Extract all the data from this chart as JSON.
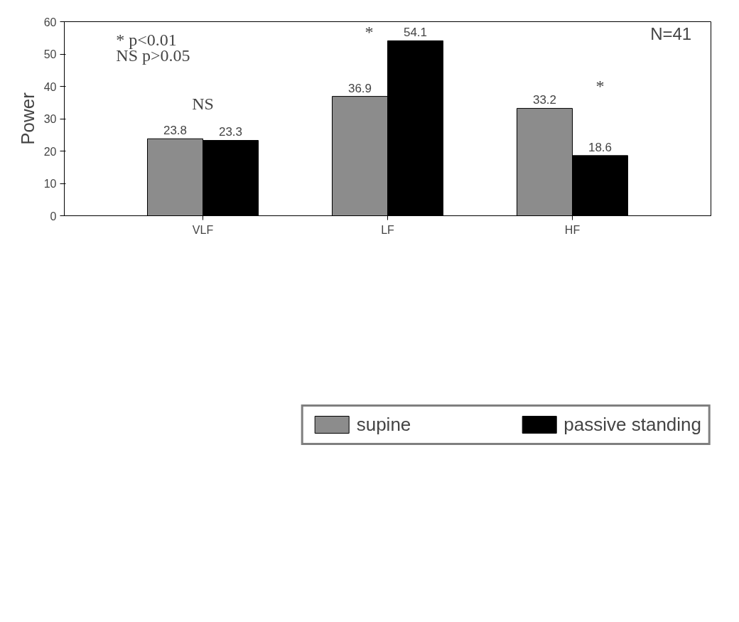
{
  "chart_data": {
    "type": "bar",
    "ylabel": "Power",
    "categories": [
      "VLF",
      "LF",
      "HF"
    ],
    "series": [
      {
        "name": "supine",
        "color": "#8c8c8c",
        "values": [
          23.8,
          36.9,
          33.2
        ]
      },
      {
        "name": "passive standing",
        "color": "#000000",
        "values": [
          23.3,
          54.1,
          18.6
        ]
      }
    ],
    "ylim": [
      0,
      60
    ],
    "yticks": [
      0,
      10,
      20,
      30,
      40,
      50,
      60
    ],
    "data_labels": true,
    "grid": false,
    "legend": "bottom",
    "annotations": [
      "* p<0.01",
      "NS p>0.05",
      "N=41",
      "NS",
      "*",
      "*"
    ]
  }
}
